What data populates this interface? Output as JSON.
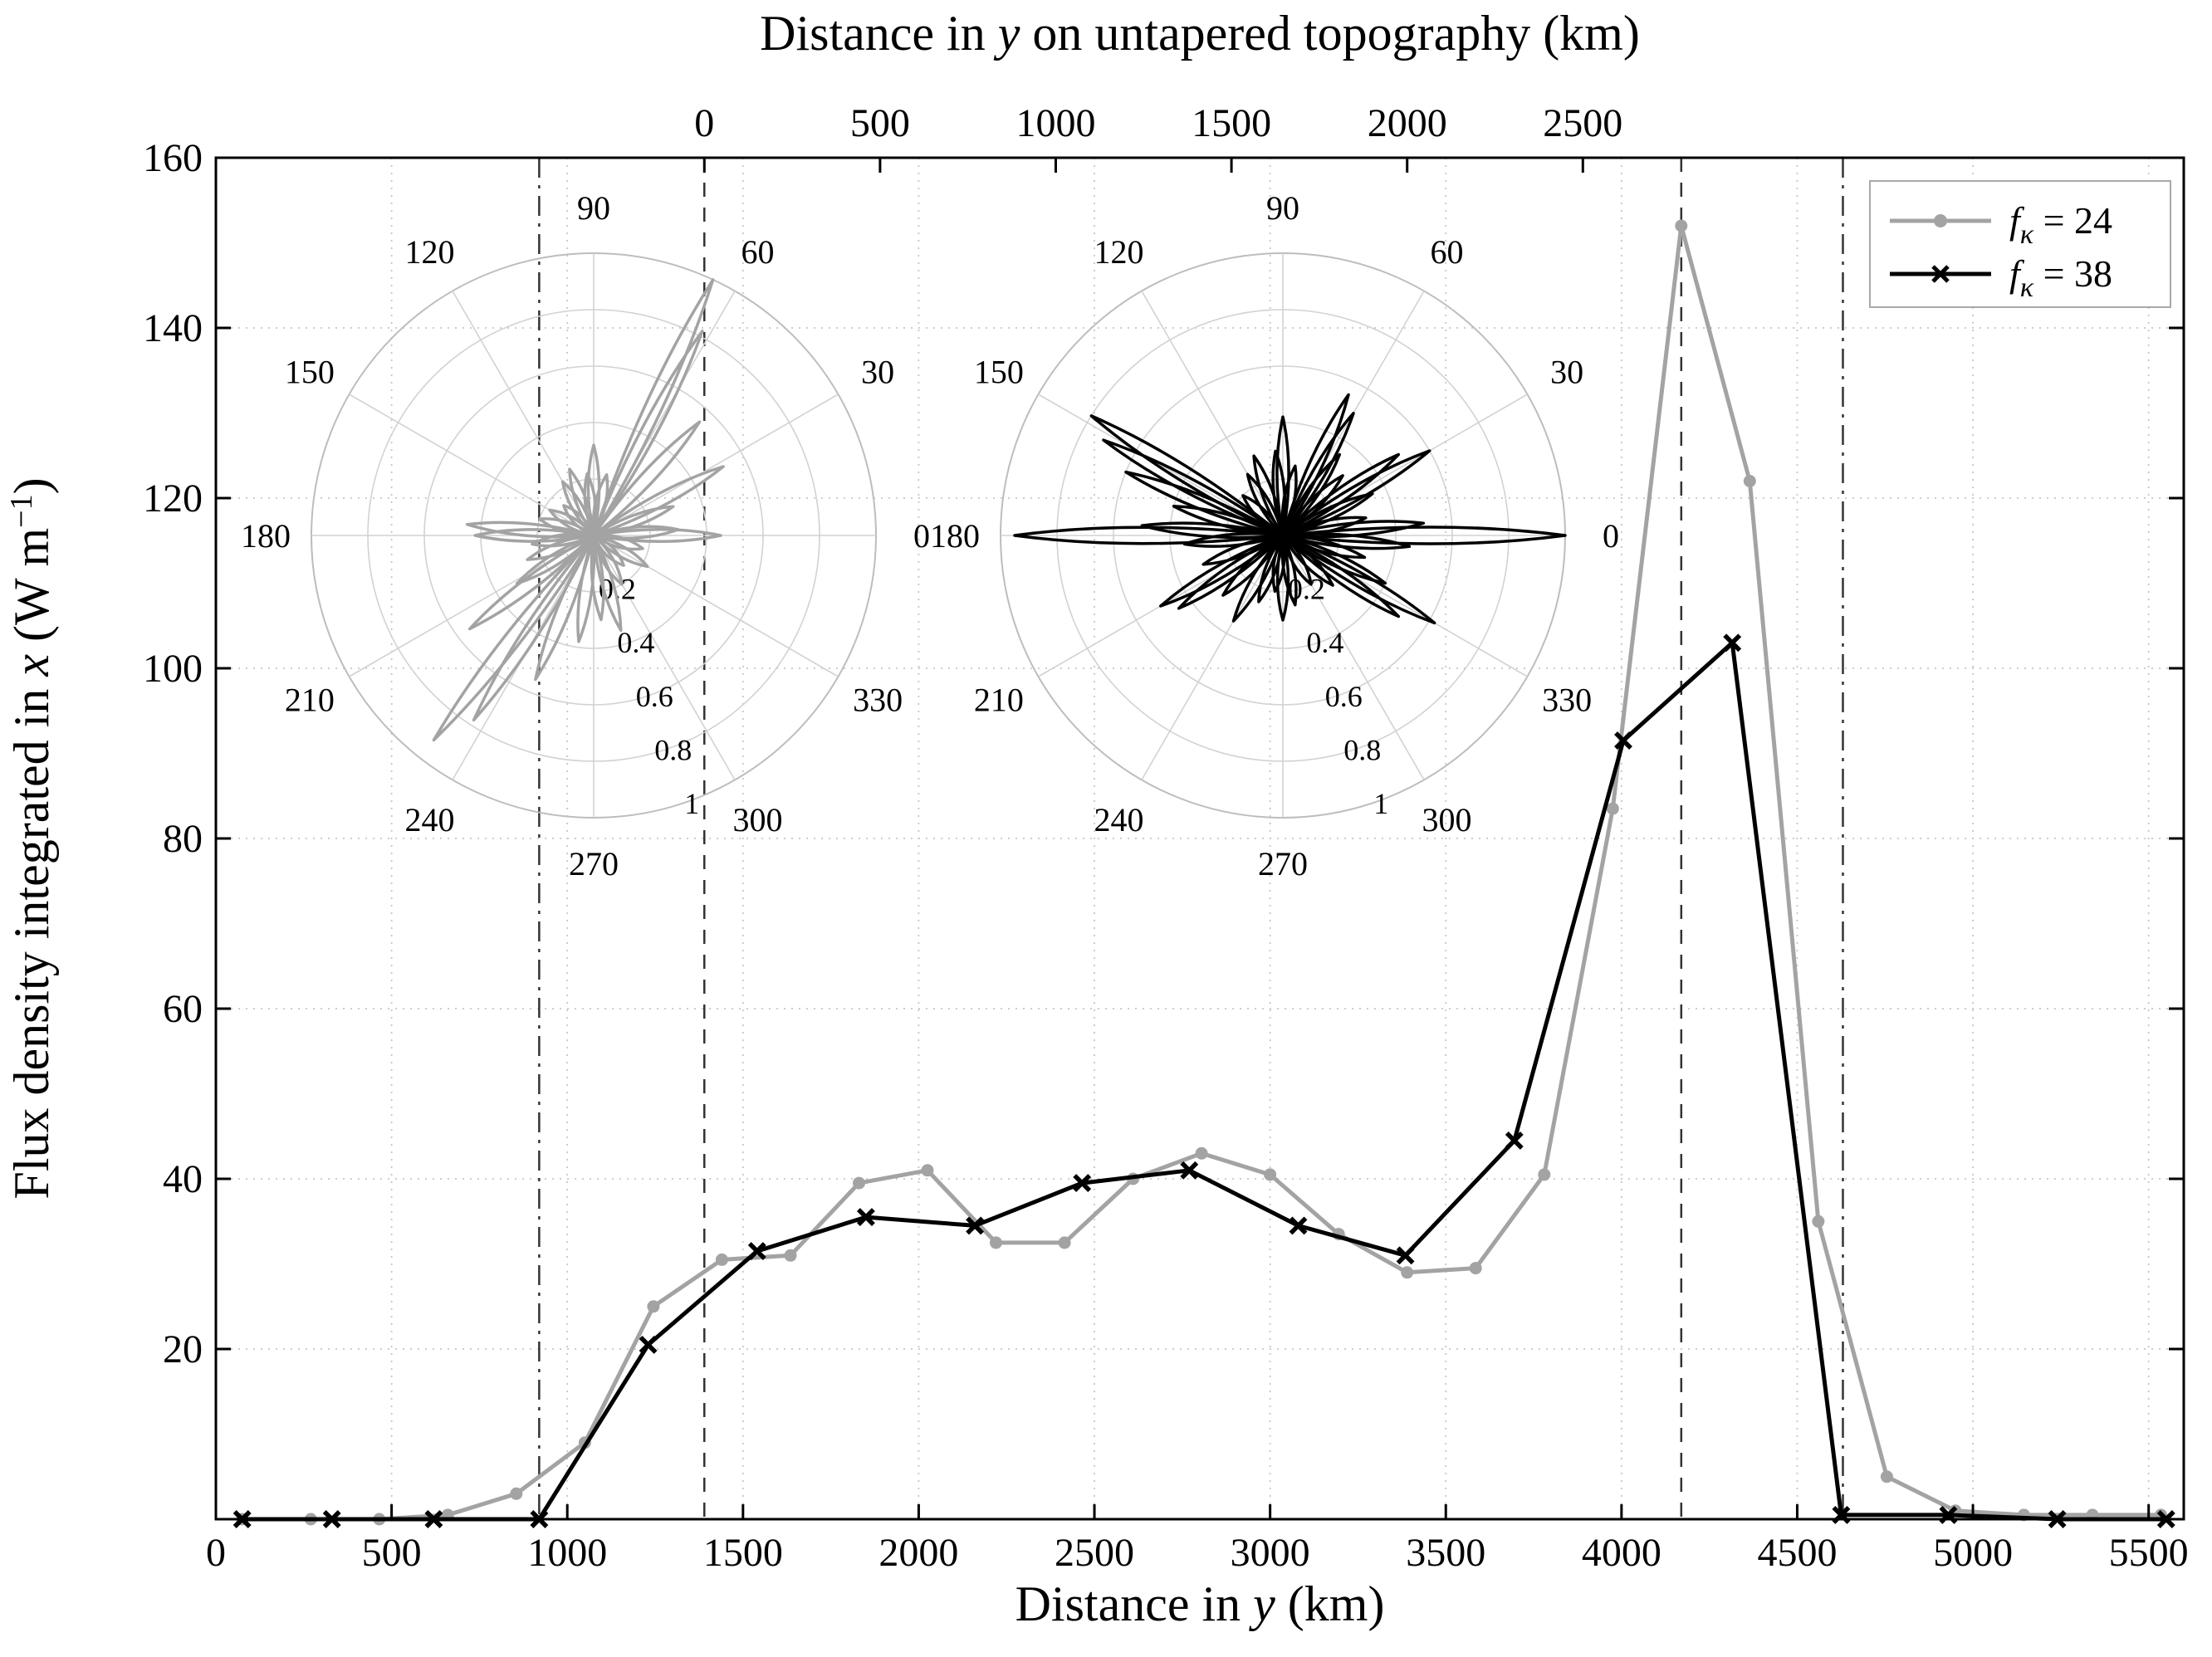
{
  "chart_data": {
    "type": "line",
    "title": "",
    "xlabel_parts": [
      "Distance in ",
      "y",
      " (km)"
    ],
    "ylabel_parts": [
      "Flux density integrated in ",
      "x",
      " (W m",
      "−1",
      ")"
    ],
    "top_xlabel_parts": [
      "Distance in ",
      "y",
      " on untapered topography (km)"
    ],
    "xlim": [
      0,
      5600
    ],
    "ylim": [
      0,
      160
    ],
    "xticks": [
      0,
      500,
      1000,
      1500,
      2000,
      2500,
      3000,
      3500,
      4000,
      4500,
      5000,
      5500
    ],
    "yticks": [
      20,
      40,
      60,
      80,
      100,
      120,
      140,
      160
    ],
    "top_axis_ticks": [
      0,
      500,
      1000,
      1500,
      2000,
      2500
    ],
    "top_axis_offset_km": 1390,
    "grid": true,
    "colors": {
      "axis": "#000000",
      "grid": "#c6c6c6",
      "refline": "#333333"
    },
    "vlines": [
      {
        "x": 920,
        "style": "dashdot"
      },
      {
        "x": 1390,
        "style": "dashed"
      },
      {
        "x": 4170,
        "style": "dashed"
      },
      {
        "x": 4630,
        "style": "dashdot"
      }
    ],
    "series": [
      {
        "id": "fk24",
        "name_f": "f",
        "name_sub": "κ",
        "name_rest": " = 24",
        "color": "#a3a3a3",
        "marker": "circle",
        "points": [
          [
            75,
            0
          ],
          [
            270,
            0
          ],
          [
            465,
            0
          ],
          [
            660,
            0.5
          ],
          [
            855,
            3
          ],
          [
            1050,
            9
          ],
          [
            1245,
            25
          ],
          [
            1440,
            30.5
          ],
          [
            1635,
            31
          ],
          [
            1830,
            39.5
          ],
          [
            2025,
            41
          ],
          [
            2220,
            32.5
          ],
          [
            2415,
            32.5
          ],
          [
            2610,
            40
          ],
          [
            2805,
            43
          ],
          [
            3000,
            40.5
          ],
          [
            3195,
            33.5
          ],
          [
            3390,
            29
          ],
          [
            3585,
            29.5
          ],
          [
            3780,
            40.5
          ],
          [
            3975,
            83.5
          ],
          [
            4170,
            152
          ],
          [
            4365,
            122
          ],
          [
            4560,
            35
          ],
          [
            4755,
            5
          ],
          [
            4950,
            1
          ],
          [
            5145,
            0.5
          ],
          [
            5340,
            0.5
          ],
          [
            5535,
            0.5
          ]
        ]
      },
      {
        "id": "fk38",
        "name_f": "f",
        "name_sub": "κ",
        "name_rest": " = 38",
        "color": "#000000",
        "marker": "x",
        "points": [
          [
            75,
            0
          ],
          [
            330,
            0
          ],
          [
            620,
            0
          ],
          [
            920,
            0
          ],
          [
            1230,
            20.5
          ],
          [
            1540,
            31.5
          ],
          [
            1850,
            35.5
          ],
          [
            2160,
            34.5
          ],
          [
            2465,
            39.5
          ],
          [
            2770,
            41
          ],
          [
            3080,
            34.5
          ],
          [
            3385,
            31
          ],
          [
            3695,
            44.5
          ],
          [
            4005,
            91.5
          ],
          [
            4315,
            103
          ],
          [
            4625,
            0.5
          ],
          [
            4930,
            0.5
          ],
          [
            5240,
            0
          ],
          [
            5550,
            0
          ]
        ]
      }
    ],
    "insets": [
      {
        "id": "rose-fk24",
        "color": "#a3a3a3",
        "angle_labels": [
          0,
          30,
          60,
          90,
          120,
          150,
          180,
          210,
          240,
          270,
          300,
          330
        ],
        "r_labels": [
          0.2,
          0.4,
          0.6,
          0.8,
          1
        ],
        "petals": [
          [
            0,
            0.45
          ],
          [
            4,
            0.3
          ],
          [
            20,
            0.3
          ],
          [
            28,
            0.52
          ],
          [
            47,
            0.55
          ],
          [
            62,
            0.82
          ],
          [
            65,
            1.0
          ],
          [
            78,
            0.22
          ],
          [
            90,
            0.32
          ],
          [
            96,
            0.22
          ],
          [
            110,
            0.25
          ],
          [
            120,
            0.22
          ],
          [
            135,
            0.15
          ],
          [
            150,
            0.18
          ],
          [
            163,
            0.2
          ],
          [
            175,
            0.45
          ],
          [
            180,
            0.42
          ],
          [
            188,
            0.22
          ],
          [
            200,
            0.25
          ],
          [
            212,
            0.32
          ],
          [
            217,
            0.55
          ],
          [
            232,
            0.92
          ],
          [
            237,
            0.78
          ],
          [
            248,
            0.55
          ],
          [
            262,
            0.38
          ],
          [
            275,
            0.3
          ],
          [
            286,
            0.35
          ],
          [
            300,
            0.2
          ],
          [
            315,
            0.15
          ],
          [
            330,
            0.22
          ],
          [
            345,
            0.18
          ]
        ]
      },
      {
        "id": "rose-fk38",
        "color": "#000000",
        "angle_labels": [
          0,
          30,
          60,
          90,
          120,
          150,
          180,
          210,
          240,
          270,
          300,
          330
        ],
        "r_labels": [
          0.2,
          0.4,
          0.6,
          0.8,
          1
        ],
        "petals": [
          [
            0,
            1.0
          ],
          [
            5,
            0.5
          ],
          [
            12,
            0.3
          ],
          [
            25,
            0.35
          ],
          [
            30,
            0.6
          ],
          [
            35,
            0.5
          ],
          [
            45,
            0.3
          ],
          [
            55,
            0.35
          ],
          [
            60,
            0.5
          ],
          [
            65,
            0.55
          ],
          [
            80,
            0.25
          ],
          [
            90,
            0.42
          ],
          [
            95,
            0.3
          ],
          [
            110,
            0.3
          ],
          [
            120,
            0.25
          ],
          [
            135,
            0.2
          ],
          [
            148,
            0.8
          ],
          [
            152,
            0.72
          ],
          [
            158,
            0.6
          ],
          [
            165,
            0.4
          ],
          [
            176,
            0.5
          ],
          [
            180,
            0.95
          ],
          [
            185,
            0.35
          ],
          [
            200,
            0.3
          ],
          [
            210,
            0.5
          ],
          [
            215,
            0.45
          ],
          [
            225,
            0.3
          ],
          [
            240,
            0.35
          ],
          [
            250,
            0.25
          ],
          [
            262,
            0.2
          ],
          [
            270,
            0.3
          ],
          [
            280,
            0.25
          ],
          [
            300,
            0.2
          ],
          [
            315,
            0.25
          ],
          [
            325,
            0.5
          ],
          [
            330,
            0.62
          ],
          [
            335,
            0.4
          ],
          [
            345,
            0.3
          ],
          [
            355,
            0.45
          ]
        ]
      }
    ]
  }
}
